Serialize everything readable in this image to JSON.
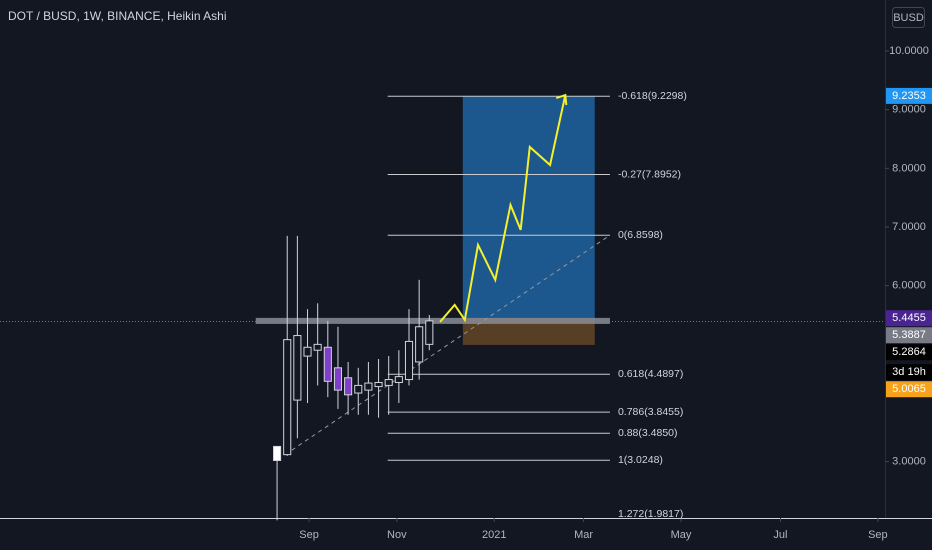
{
  "chart_data": {
    "type": "candlestick",
    "title": "DOT / BUSD, 1W, BINANCE, Heikin Ashi",
    "currency": "BUSD",
    "x": [
      0,
      1,
      2,
      3,
      4,
      5,
      6,
      7,
      8,
      9,
      10,
      11,
      12,
      13,
      14,
      15
    ],
    "open": [
      3.02,
      3.12,
      5.15,
      4.8,
      4.9,
      4.95,
      4.6,
      4.43,
      4.17,
      4.22,
      4.28,
      4.3,
      4.35,
      4.4,
      4.7,
      5.0
    ],
    "high": [
      3.26,
      6.85,
      6.85,
      5.6,
      5.7,
      5.4,
      5.3,
      4.7,
      4.6,
      4.7,
      4.75,
      4.8,
      4.9,
      5.6,
      6.1,
      5.5
    ],
    "low": [
      2.0,
      3.1,
      3.4,
      4.0,
      4.3,
      4.1,
      3.9,
      3.8,
      3.8,
      3.8,
      3.75,
      3.8,
      4.0,
      4.3,
      4.4,
      4.9
    ],
    "close": [
      3.26,
      5.08,
      4.05,
      4.95,
      5.0,
      4.37,
      4.22,
      4.14,
      4.3,
      4.34,
      4.35,
      4.4,
      4.45,
      5.05,
      5.3,
      5.4
    ],
    "candle_colors": [
      "#ffffff",
      "#131722",
      "#131722",
      "#131722",
      "#131722",
      "#7e3fc9",
      "#7e3fc9",
      "#7e3fc9",
      "#131722",
      "#131722",
      "#131722",
      "#131722",
      "#131722",
      "#131722",
      "#131722",
      "#131722"
    ],
    "wick_color": "#d1d4dc",
    "xlim": [
      -27.3,
      59.9
    ],
    "xticks": [
      {
        "value": 3.15,
        "label": "Sep"
      },
      {
        "value": 11.8,
        "label": "Nov"
      },
      {
        "value": 21.4,
        "label": "2021"
      },
      {
        "value": 30.2,
        "label": "Mar"
      },
      {
        "value": 39.8,
        "label": "May"
      },
      {
        "value": 49.6,
        "label": "Jul"
      },
      {
        "value": 59.2,
        "label": "Sep"
      }
    ],
    "ylim": [
      2.04,
      10.87
    ],
    "yticks": [
      {
        "value": 3,
        "label": "3.0000"
      },
      {
        "value": 6,
        "label": "6.0000"
      },
      {
        "value": 7,
        "label": "7.0000"
      },
      {
        "value": 8,
        "label": "8.0000"
      },
      {
        "value": 9,
        "label": "9.0000"
      },
      {
        "value": 10,
        "label": "10.0000"
      }
    ],
    "fib_levels": [
      {
        "label": "-0.618(9.2298)",
        "value": 9.2298
      },
      {
        "label": "-0.27(7.8952)",
        "value": 7.8952
      },
      {
        "label": "0(6.8598)",
        "value": 6.8598
      },
      {
        "label": "0.618(4.4897)",
        "value": 4.4897
      },
      {
        "label": "0.786(3.8455)",
        "value": 3.8455
      },
      {
        "label": "0.88(3.4850)",
        "value": 3.485
      },
      {
        "label": "1(3.0248)",
        "value": 3.0248
      },
      {
        "label": "1.272(1.9817)",
        "value": 1.9817
      }
    ],
    "fib_x": [
      10.9,
      32.8
    ],
    "target_box": {
      "x": [
        18.3,
        31.3
      ],
      "y": [
        5.4455,
        9.2298
      ],
      "color": "#1e5f99"
    },
    "stop_box": {
      "x": [
        18.3,
        31.3
      ],
      "y": [
        4.99,
        5.4455
      ],
      "color": "#5e4426"
    },
    "projection": {
      "color": "#f5f02a",
      "x": [
        16.06,
        17.5,
        18.5,
        19.8,
        21.5,
        23.0,
        24.0,
        24.9,
        26.9,
        28.4
      ],
      "y": [
        5.383,
        5.673,
        5.417,
        6.695,
        6.099,
        7.376,
        6.951,
        8.365,
        8.058,
        9.25
      ]
    },
    "trend_line": {
      "x": [
        0.8,
        32.8
      ],
      "y": [
        3.12,
        6.86
      ]
    },
    "level_zone": {
      "x": [
        -2.1,
        32.8
      ],
      "y": 5.4
    },
    "price_line": 5.3887,
    "price_markers": [
      {
        "value": 9.2353,
        "label": "9.2353",
        "color": "#2196f3"
      },
      {
        "value": 5.4455,
        "label": "5.4455",
        "color": "#4a2591"
      },
      {
        "value": 5.3887,
        "label": "5.3887",
        "color": "#787b86"
      },
      {
        "value": 5.2864,
        "label": "5.2864",
        "color": "#000000"
      },
      {
        "value": 5.0065,
        "label": "5.0065",
        "color": "#f7a21b"
      }
    ],
    "countdown": "3d 19h"
  }
}
